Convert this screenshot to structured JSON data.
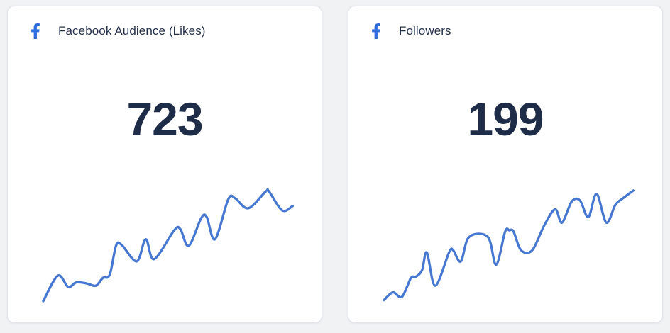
{
  "page": {
    "background": "#f1f2f4",
    "card_background": "#ffffff",
    "card_border": "#e2e4e9"
  },
  "cards": [
    {
      "title": "Facebook Audience (Likes)",
      "value": "723",
      "icon": "facebook-f",
      "icon_color": "#2e6bdb",
      "line_color": "#4678d2",
      "text_color": "#1f2c47"
    },
    {
      "title": "Followers",
      "value": "199",
      "icon": "facebook-f",
      "icon_color": "#2e6bdb",
      "line_color": "#4678d2",
      "text_color": "#1f2c47"
    }
  ],
  "chart_data": [
    {
      "type": "line",
      "title": "Facebook Audience (Likes) sparkline",
      "current_value": 723,
      "xlabel": "",
      "ylabel": "",
      "axes_visible": false,
      "grid": false,
      "legend": false,
      "trend": "rising",
      "x_range": [
        0,
        360
      ],
      "value_range_pct": [
        0,
        100
      ],
      "series": [
        {
          "name": "Likes",
          "points": [
            [
              0,
              0
            ],
            [
              21,
              23
            ],
            [
              36,
              13
            ],
            [
              48,
              17
            ],
            [
              63,
              16
            ],
            [
              76,
              14
            ],
            [
              86,
              21
            ],
            [
              96,
              24
            ],
            [
              105,
              50
            ],
            [
              113,
              51
            ],
            [
              135,
              36
            ],
            [
              148,
              56
            ],
            [
              160,
              38
            ],
            [
              189,
              64
            ],
            [
              198,
              65
            ],
            [
              210,
              50
            ],
            [
              228,
              75
            ],
            [
              236,
              76
            ],
            [
              248,
              56
            ],
            [
              267,
              92
            ],
            [
              277,
              93
            ],
            [
              296,
              84
            ],
            [
              321,
              99
            ],
            [
              326,
              99
            ],
            [
              345,
              82
            ],
            [
              360,
              86
            ]
          ]
        }
      ]
    },
    {
      "type": "line",
      "title": "Followers sparkline",
      "current_value": 199,
      "xlabel": "",
      "ylabel": "",
      "axes_visible": false,
      "grid": false,
      "legend": false,
      "trend": "rising",
      "x_range": [
        0,
        360
      ],
      "value_range_pct": [
        0,
        100
      ],
      "series": [
        {
          "name": "Followers",
          "points": [
            [
              0,
              1
            ],
            [
              13,
              8
            ],
            [
              26,
              4
            ],
            [
              39,
              21
            ],
            [
              46,
              22
            ],
            [
              55,
              28
            ],
            [
              62,
              44
            ],
            [
              74,
              14
            ],
            [
              94,
              44
            ],
            [
              100,
              46
            ],
            [
              111,
              36
            ],
            [
              123,
              58
            ],
            [
              150,
              58
            ],
            [
              162,
              33
            ],
            [
              175,
              63
            ],
            [
              181,
              64
            ],
            [
              187,
              63
            ],
            [
              198,
              46
            ],
            [
              214,
              46
            ],
            [
              231,
              68
            ],
            [
              247,
              83
            ],
            [
              257,
              71
            ],
            [
              271,
              90
            ],
            [
              283,
              91
            ],
            [
              295,
              76
            ],
            [
              307,
              97
            ],
            [
              321,
              71
            ],
            [
              334,
              87
            ],
            [
              345,
              93
            ],
            [
              360,
              100
            ]
          ]
        }
      ]
    }
  ]
}
